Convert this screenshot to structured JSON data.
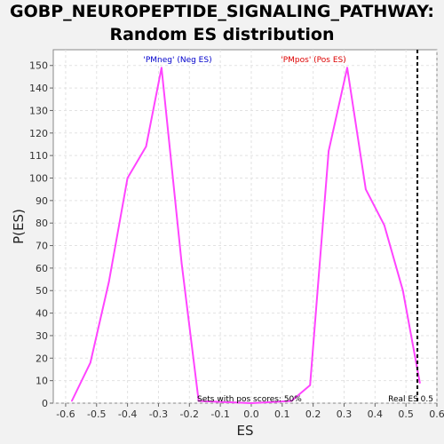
{
  "chart_data": {
    "type": "line",
    "title_line1": "GOBP_NEUROPEPTIDE_SIGNALING_PATHWAY:",
    "title_line2": "Random ES distribution",
    "xlabel": "ES",
    "ylabel": "P(ES)",
    "xlim": [
      -0.64,
      0.6
    ],
    "ylim": [
      0,
      157
    ],
    "x_ticks": [
      -0.6,
      -0.5,
      -0.4,
      -0.3,
      -0.2,
      -0.1,
      0.0,
      0.1,
      0.2,
      0.3,
      0.4,
      0.5,
      0.6
    ],
    "x_tick_labels": [
      "-0.6",
      "-0.5",
      "-0.4",
      "-0.3",
      "-0.2",
      "-0.1",
      "0.0",
      "0.1",
      "0.2",
      "0.3",
      "0.4",
      "0.5",
      "0.6"
    ],
    "y_ticks": [
      0,
      10,
      20,
      30,
      40,
      50,
      60,
      70,
      80,
      90,
      100,
      110,
      120,
      130,
      140,
      150
    ],
    "y_tick_labels": [
      "0",
      "10",
      "20",
      "30",
      "40",
      "50",
      "60",
      "70",
      "80",
      "90",
      "100",
      "110",
      "120",
      "130",
      "140",
      "150"
    ],
    "grid": true,
    "line_color": "#ff44ff",
    "series": [
      {
        "x": [
          -0.58,
          -0.52,
          -0.46,
          -0.4,
          -0.34,
          -0.29,
          -0.225,
          -0.17,
          0.0,
          0.13,
          0.19,
          0.25,
          0.31,
          0.37,
          0.43,
          0.49,
          0.545
        ],
        "values": [
          1,
          18,
          54,
          100,
          114,
          149,
          62,
          1,
          0,
          1,
          8,
          112,
          149,
          95,
          79,
          50,
          9
        ]
      }
    ],
    "real_es": 0.537,
    "real_es_color": "#000000",
    "annotations": {
      "neg_label": "'PMneg' (Neg ES)",
      "neg_color": "#0000cc",
      "pos_label": "'PMpos' (Pos ES)",
      "pos_color": "#dd0000",
      "sets_label": "Sets with pos scores: 50%",
      "real_label": "Real ES 0.5"
    }
  }
}
